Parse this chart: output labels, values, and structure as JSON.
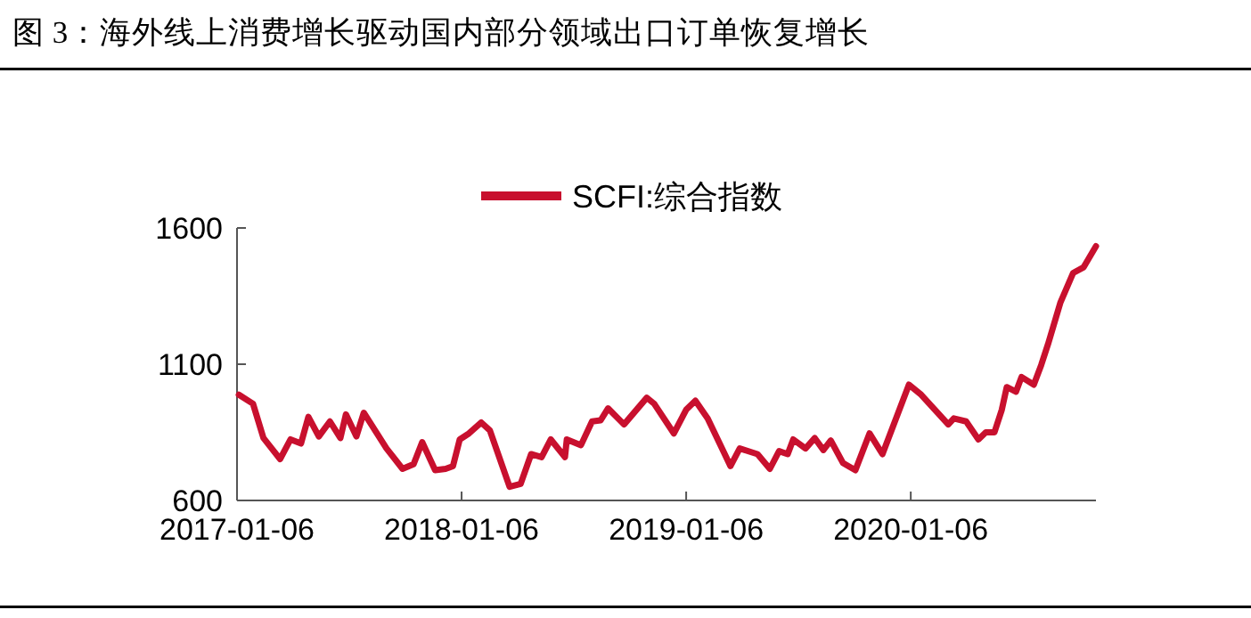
{
  "chart_data": {
    "type": "line",
    "title": "图 3：海外线上消费增长驱动国内部分领域出口订单恢复增长",
    "xlim": [
      "2017-01-06",
      "2020-11-02"
    ],
    "xticks": [
      "2017-01-06",
      "2018-01-06",
      "2019-01-06",
      "2020-01-06"
    ],
    "ylim": [
      600,
      1600
    ],
    "yticks": [
      600,
      1100,
      1600
    ],
    "grid": false,
    "legend": "top",
    "marker": "none",
    "line_style": "solid",
    "x": [
      "2017-01-09",
      "2017-02-01",
      "2017-02-18",
      "2017-03-17",
      "2017-04-03",
      "2017-04-20",
      "2017-05-02",
      "2017-05-19",
      "2017-06-06",
      "2017-06-23",
      "2017-07-02",
      "2017-07-19",
      "2017-07-31",
      "2017-09-06",
      "2017-10-02",
      "2017-10-20",
      "2017-11-03",
      "2017-11-24",
      "2017-12-11",
      "2017-12-23",
      "2018-01-03",
      "2018-01-18",
      "2018-02-07",
      "2018-02-21",
      "2018-03-25",
      "2018-04-12",
      "2018-04-29",
      "2018-05-16",
      "2018-05-31",
      "2018-06-23",
      "2018-06-26",
      "2018-07-19",
      "2018-08-06",
      "2018-08-20",
      "2018-09-01",
      "2018-09-27",
      "2018-11-03",
      "2018-11-15",
      "2018-12-17",
      "2019-01-06",
      "2019-01-21",
      "2019-02-10",
      "2019-03-19",
      "2019-04-03",
      "2019-05-02",
      "2019-05-22",
      "2019-06-06",
      "2019-06-20",
      "2019-06-29",
      "2019-07-19",
      "2019-08-03",
      "2019-08-17",
      "2019-08-29",
      "2019-09-18",
      "2019-10-08",
      "2019-10-31",
      "2019-11-21",
      "2020-01-03",
      "2020-01-23",
      "2020-03-07",
      "2020-03-16",
      "2020-04-05",
      "2020-04-25",
      "2020-05-07",
      "2020-05-21",
      "2020-06-02",
      "2020-06-10",
      "2020-06-25",
      "2020-07-04",
      "2020-07-24",
      "2020-08-05",
      "2020-08-16",
      "2020-09-05",
      "2020-09-26",
      "2020-10-13",
      "2020-11-02"
    ],
    "series": [
      {
        "name": "SCFI:综合指数",
        "color": "#c8102e",
        "values": [
          988,
          955,
          829,
          752,
          824,
          809,
          907,
          835,
          890,
          829,
          916,
          835,
          922,
          791,
          716,
          733,
          814,
          711,
          716,
          726,
          824,
          846,
          886,
          857,
          650,
          661,
          770,
          759,
          824,
          759,
          824,
          803,
          890,
          894,
          938,
          879,
          977,
          955,
          846,
          933,
          966,
          901,
          726,
          791,
          770,
          716,
          781,
          770,
          824,
          791,
          829,
          785,
          820,
          737,
          711,
          846,
          770,
          1025,
          988,
          879,
          901,
          890,
          824,
          850,
          850,
          933,
          1016,
          999,
          1053,
          1025,
          1097,
          1173,
          1325,
          1435,
          1456,
          1533
        ]
      }
    ]
  }
}
